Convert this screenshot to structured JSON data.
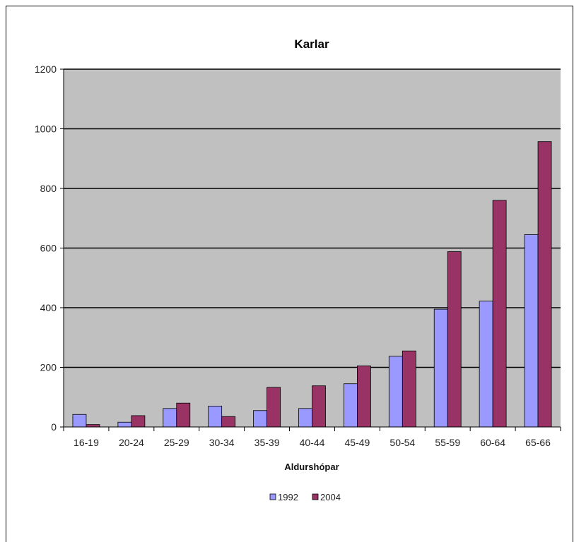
{
  "chart_data": {
    "type": "bar",
    "title": "Karlar",
    "xlabel": "Aldurshópar",
    "ylabel": "",
    "ylim": [
      0,
      1200
    ],
    "yticks": [
      0,
      200,
      400,
      600,
      800,
      1000,
      1200
    ],
    "grid": true,
    "legend_position": "bottom",
    "categories": [
      "16-19",
      "20-24",
      "25-29",
      "30-34",
      "35-39",
      "40-44",
      "45-49",
      "50-54",
      "55-59",
      "60-64",
      "65-66"
    ],
    "series": [
      {
        "name": "1992",
        "color": "#9999ff",
        "values": [
          42,
          16,
          62,
          70,
          55,
          62,
          145,
          237,
          395,
          422,
          645
        ]
      },
      {
        "name": "2004",
        "color": "#993366",
        "values": [
          8,
          38,
          80,
          35,
          133,
          138,
          205,
          255,
          588,
          760,
          957
        ]
      }
    ],
    "plot_background": "#c0c0c0"
  }
}
